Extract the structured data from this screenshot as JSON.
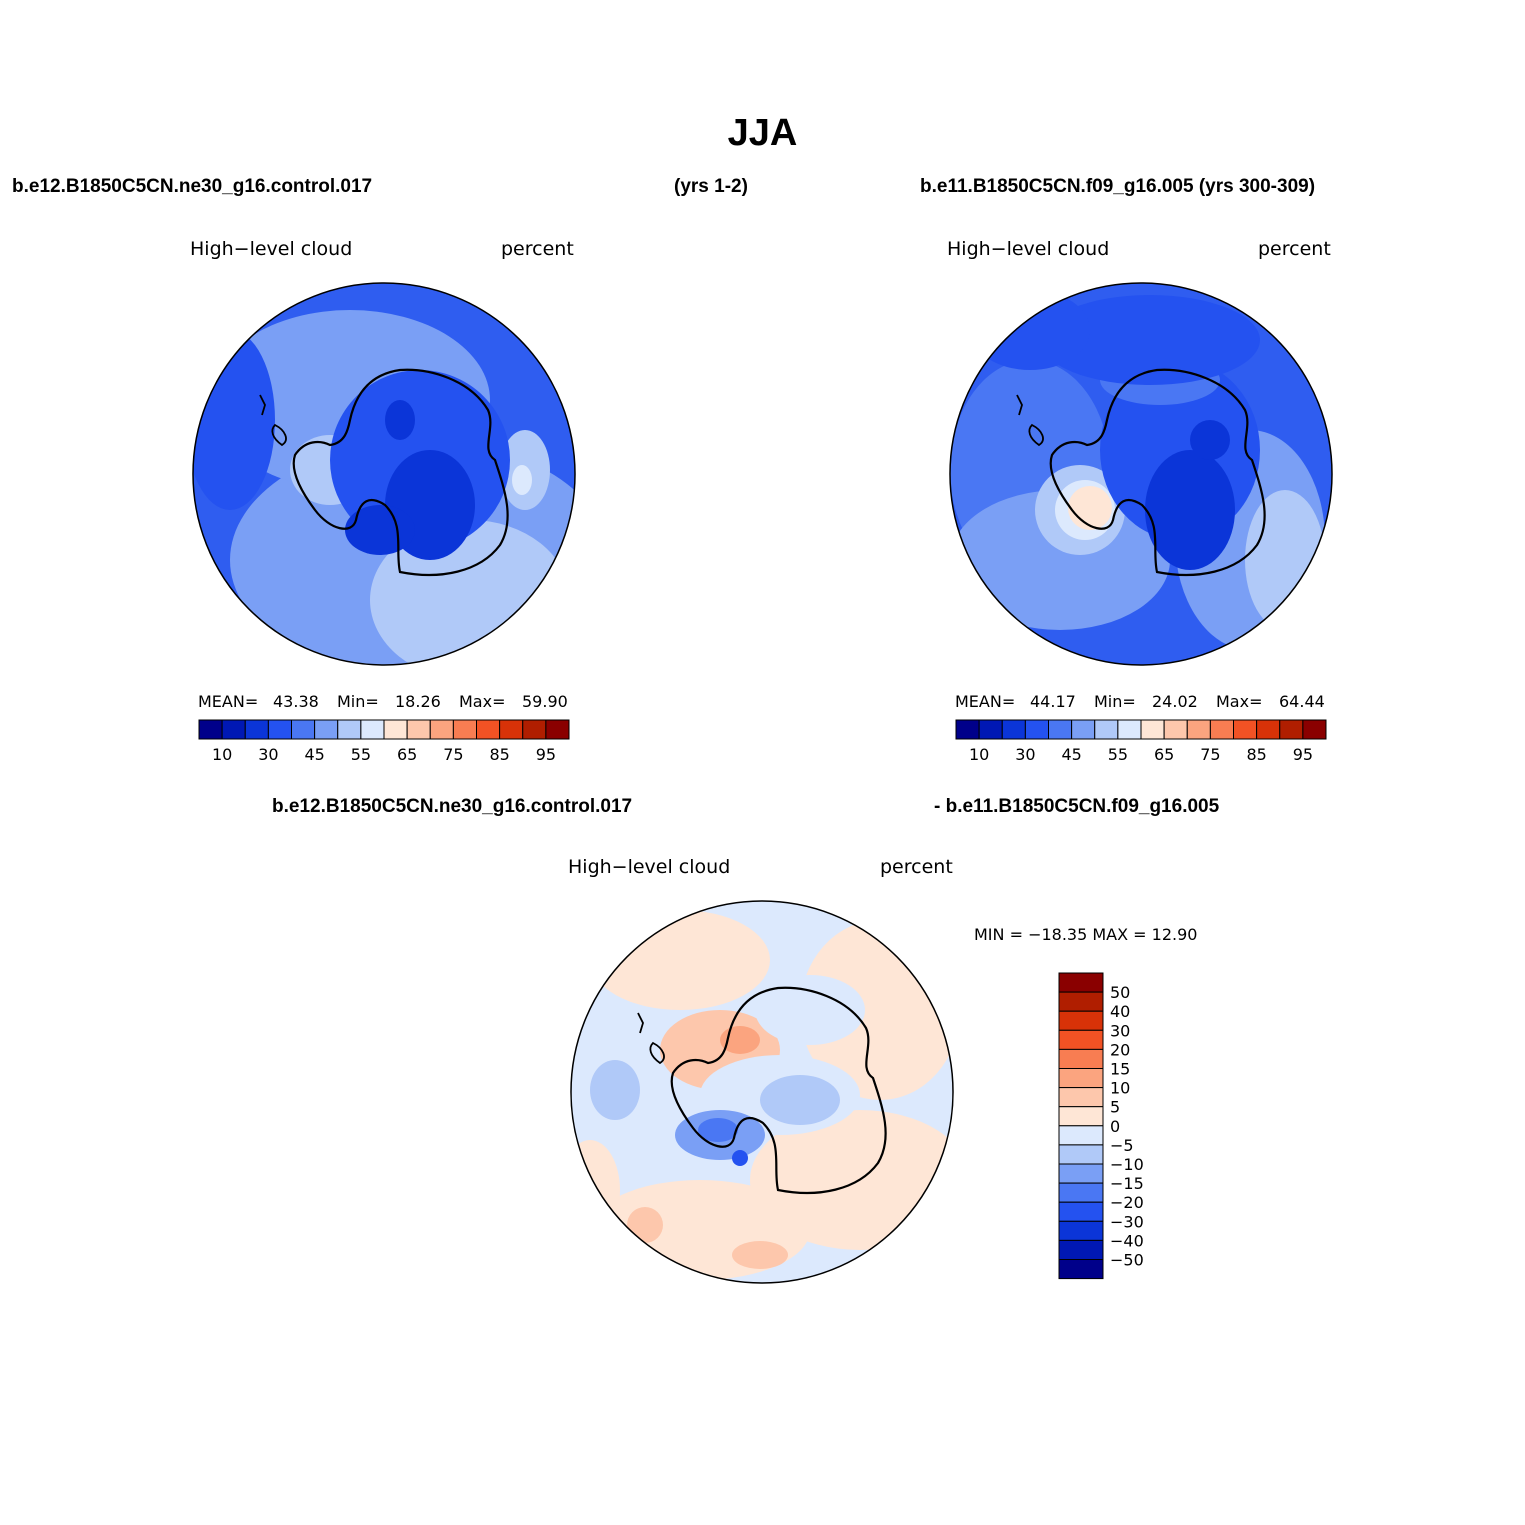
{
  "title": "JJA",
  "header": {
    "left": "b.e12.B1850C5CN.ne30_g16.control.017",
    "middle": "(yrs 1-2)",
    "right": "b.e11.B1850C5CN.f09_g16.005 (yrs 300-309)",
    "diff_left": "b.e12.B1850C5CN.ne30_g16.control.017",
    "diff_right": "- b.e11.B1850C5CN.f09_g16.005"
  },
  "panels": [
    {
      "variable": "High−level cloud",
      "units": "percent",
      "stats": {
        "mean_label": "MEAN=",
        "mean": "43.38",
        "min_label": "Min=",
        "min": "18.26",
        "max_label": "Max=",
        "max": "59.90"
      },
      "base_color": "#3a66f0"
    },
    {
      "variable": "High−level cloud",
      "units": "percent",
      "stats": {
        "mean_label": "MEAN=",
        "mean": "44.17",
        "min_label": "Min=",
        "min": "24.02",
        "max_label": "Max=",
        "max": "64.44"
      },
      "base_color": "#3e6cf2"
    },
    {
      "variable": "High−level cloud",
      "units": "percent",
      "stats_text": "MIN = −18.35 MAX =   12.90",
      "base_color": "#d7e6fb"
    }
  ],
  "colorbar_abs": {
    "colors": [
      "#00008a",
      "#0018b4",
      "#0b35d8",
      "#2452f0",
      "#4a77f3",
      "#7a9ff5",
      "#b0c9f8",
      "#dce9fd",
      "#fee6d6",
      "#fdc7ac",
      "#fba47f",
      "#f87d52",
      "#f25224",
      "#d83208",
      "#b01e00",
      "#8a0000"
    ],
    "labels": [
      "10",
      "30",
      "45",
      "55",
      "65",
      "75",
      "85",
      "95"
    ]
  },
  "colorbar_diff": {
    "colors": [
      "#8a0000",
      "#b01e00",
      "#d83208",
      "#f25224",
      "#f87d52",
      "#fba47f",
      "#fdc7ac",
      "#fee6d6",
      "#dce9fd",
      "#b0c9f8",
      "#7a9ff5",
      "#4a77f3",
      "#2452f0",
      "#0b35d8",
      "#0018b4",
      "#00008a"
    ],
    "labels": [
      "50",
      "40",
      "30",
      "20",
      "15",
      "10",
      "5",
      "0",
      "−5",
      "−10",
      "−15",
      "−20",
      "−30",
      "−40",
      "−50"
    ]
  }
}
